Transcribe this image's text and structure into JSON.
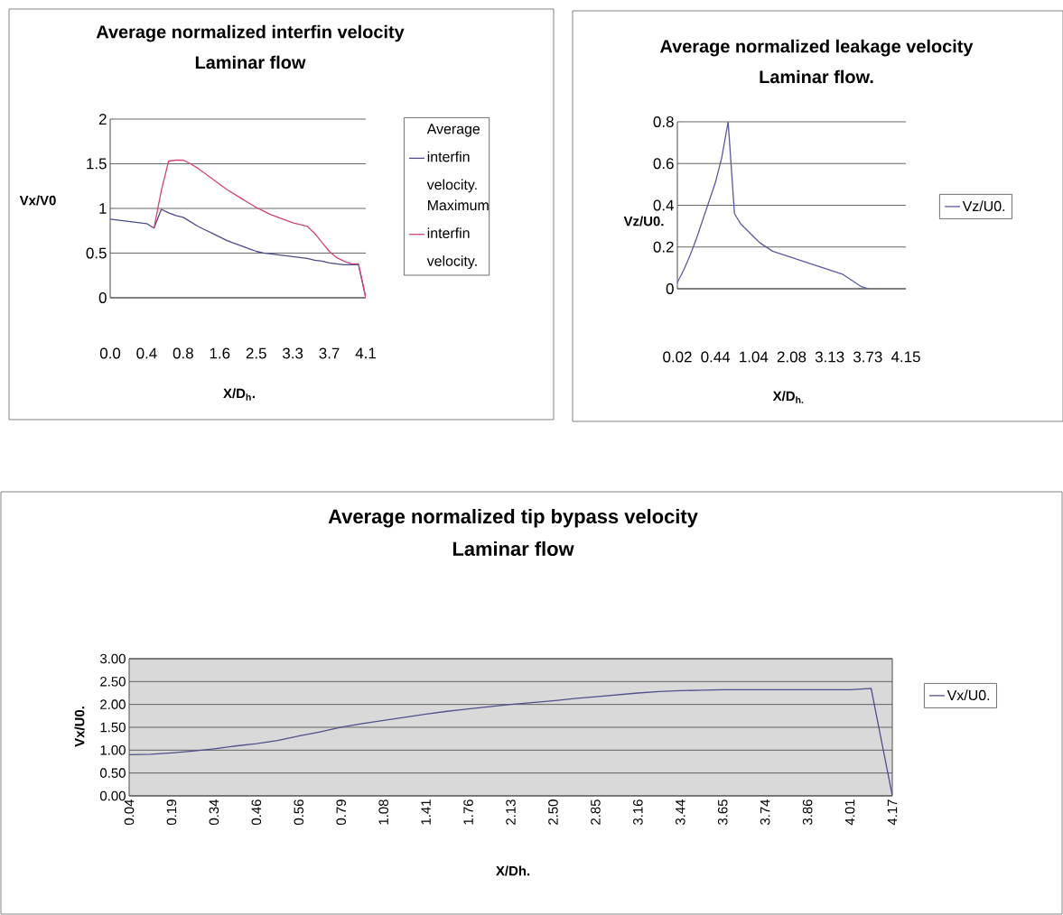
{
  "chart_data": [
    {
      "type": "line",
      "title": "Average normalized interfin velocity",
      "subtitle": "Laminar flow",
      "xlabel": "X/D$_{h}$.",
      "ylabel": "Vx/V0",
      "categories": [
        "0.0",
        null,
        null,
        null,
        null,
        "0.4",
        null,
        null,
        null,
        null,
        "0.8",
        null,
        null,
        null,
        null,
        "1.6",
        null,
        null,
        null,
        null,
        "2.5",
        null,
        null,
        null,
        null,
        "3.3",
        null,
        null,
        null,
        null,
        "3.7",
        null,
        null,
        null,
        null,
        "4.1"
      ],
      "series": [
        {
          "name": "Average interfin velocity.",
          "color": "#4a4a8c",
          "values": [
            0.88,
            0.87,
            0.86,
            0.85,
            0.84,
            0.83,
            0.78,
            0.99,
            0.95,
            0.92,
            0.9,
            0.85,
            0.8,
            0.76,
            0.72,
            0.68,
            0.64,
            0.61,
            0.58,
            0.55,
            0.52,
            0.5,
            0.49,
            0.48,
            0.47,
            0.46,
            0.45,
            0.44,
            0.42,
            0.41,
            0.39,
            0.38,
            0.37,
            0.37,
            0.37,
            0
          ]
        },
        {
          "name": "Maximum interfin velocity.",
          "color": "#d8407a",
          "values": [
            null,
            null,
            null,
            null,
            null,
            null,
            0.78,
            1.2,
            1.53,
            1.54,
            1.54,
            1.5,
            1.45,
            1.39,
            1.33,
            1.27,
            1.21,
            1.16,
            1.11,
            1.06,
            1.01,
            0.97,
            0.93,
            0.9,
            0.87,
            0.84,
            0.82,
            0.8,
            0.72,
            0.62,
            0.52,
            0.45,
            0.41,
            0.38,
            0.38,
            0
          ]
        }
      ],
      "ylim": [
        0,
        2
      ],
      "yticks": [
        0,
        0.5,
        1,
        1.5,
        2
      ],
      "grid": "y",
      "legend": "right"
    },
    {
      "type": "line",
      "title": "Average normalized leakage velocity",
      "subtitle": "Laminar flow.",
      "xlabel": "X/D$_{h.}$",
      "ylabel": "Vz/U0.",
      "categories": [
        "0.02",
        null,
        null,
        null,
        null,
        null,
        "0.44",
        null,
        null,
        null,
        null,
        null,
        "1.04",
        null,
        null,
        null,
        null,
        null,
        "2.08",
        null,
        null,
        null,
        null,
        null,
        "3.13",
        null,
        null,
        null,
        null,
        null,
        "3.73",
        null,
        null,
        null,
        null,
        null,
        "4.15"
      ],
      "series": [
        {
          "name": "Vz/U0.",
          "color": "#5a5aa0",
          "values": [
            0.03,
            0.09,
            0.16,
            0.24,
            0.33,
            0.42,
            0.51,
            0.63,
            0.8,
            0.36,
            0.31,
            0.28,
            0.25,
            0.22,
            0.2,
            0.18,
            0.17,
            0.16,
            0.15,
            0.14,
            0.13,
            0.12,
            0.11,
            0.1,
            0.09,
            0.08,
            0.07,
            0.05,
            0.03,
            0.01,
            0,
            null,
            null,
            null,
            null,
            null,
            null
          ]
        }
      ],
      "ylim": [
        0,
        0.8
      ],
      "yticks": [
        0,
        0.2,
        0.4,
        0.6,
        0.8
      ],
      "grid": "y",
      "legend": "right"
    },
    {
      "type": "line",
      "title": "Average normalized tip bypass velocity",
      "subtitle": "Laminar flow",
      "xlabel": "X/Dh.",
      "ylabel": "Vx/U0.",
      "categories": [
        "0.04",
        null,
        "0.19",
        null,
        "0.34",
        null,
        "0.46",
        null,
        "0.56",
        null,
        "0.79",
        null,
        "1.08",
        null,
        "1.41",
        null,
        "1.76",
        null,
        "2.13",
        null,
        "2.50",
        null,
        "2.85",
        null,
        "3.16",
        null,
        "3.44",
        null,
        "3.65",
        null,
        "3.74",
        null,
        "3.86",
        null,
        "4.01",
        null,
        "4.17"
      ],
      "series": [
        {
          "name": "Vx/U0.",
          "color": "#50508c",
          "values": [
            0.9,
            0.91,
            0.94,
            0.98,
            1.03,
            1.09,
            1.14,
            1.21,
            1.31,
            1.4,
            1.5,
            1.58,
            1.65,
            1.72,
            1.79,
            1.85,
            1.9,
            1.95,
            2.0,
            2.04,
            2.08,
            2.13,
            2.17,
            2.21,
            2.25,
            2.28,
            2.3,
            2.31,
            2.32,
            2.32,
            2.32,
            2.32,
            2.32,
            2.32,
            2.32,
            2.35,
            0
          ]
        }
      ],
      "ylim": [
        0,
        3
      ],
      "yticks": [
        {
          "value": 0,
          "label": "0.00"
        },
        {
          "value": 0.5,
          "label": "0.50"
        },
        {
          "value": 1,
          "label": "1.00"
        },
        {
          "value": 1.5,
          "label": "1.50"
        },
        {
          "value": 2,
          "label": "2.00"
        },
        {
          "value": 2.5,
          "label": "2.50"
        },
        {
          "value": 3,
          "label": "3.00"
        }
      ],
      "grid": "y",
      "legend": "right"
    }
  ]
}
